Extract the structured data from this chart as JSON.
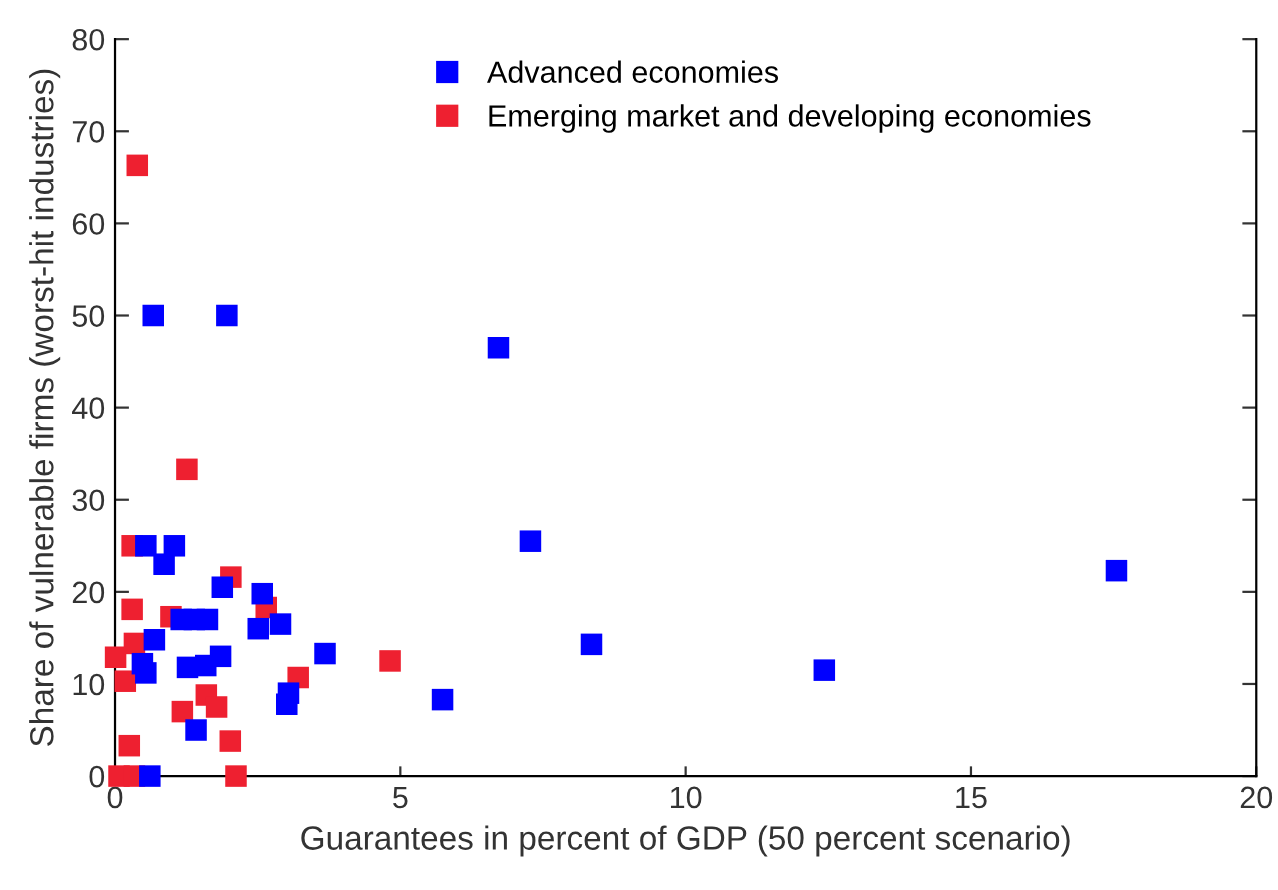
{
  "chart_data": {
    "type": "scatter",
    "xlabel": "Guarantees in percent of GDP (50 percent scenario)",
    "ylabel": "Share of vulnerable firms (worst-hit industries)",
    "xlim": [
      0,
      20
    ],
    "ylim": [
      0,
      80
    ],
    "xticks": [
      0,
      5,
      10,
      15,
      20
    ],
    "yticks": [
      0,
      10,
      20,
      30,
      40,
      50,
      60,
      70,
      80
    ],
    "marker": "square",
    "legend": "top",
    "grid": false,
    "series": [
      {
        "name": "Advanced economies",
        "color": "#0000ff",
        "x": [
          0.67,
          1.96,
          6.72,
          7.28,
          17.55,
          8.35,
          12.43,
          5.74,
          3.68,
          0.54,
          1.04,
          0.86,
          1.88,
          2.58,
          2.51,
          2.9,
          0.69,
          1.16,
          1.39,
          1.62,
          0.54,
          0.48,
          1.27,
          1.59,
          1.85,
          3.04,
          3.01,
          1.42,
          0.61
        ],
        "values": [
          50,
          50,
          46.5,
          25.5,
          22.3,
          14.3,
          11.5,
          8.3,
          13.3,
          25,
          25,
          23,
          20.5,
          19.8,
          16,
          16.5,
          14.8,
          17,
          17,
          17,
          11.2,
          12.2,
          11.8,
          12,
          13,
          9,
          7.8,
          5,
          0
        ]
      },
      {
        "name": "Emerging market and developing economies",
        "color": "#ee2030",
        "x": [
          0.39,
          1.26,
          0.3,
          2.03,
          2.65,
          0.3,
          0.98,
          0.34,
          0.01,
          0.18,
          3.21,
          4.82,
          1.6,
          1.18,
          1.78,
          2.02,
          0.25,
          0.07,
          0.34,
          2.12
        ],
        "values": [
          66.3,
          33.3,
          25,
          21.6,
          18.3,
          18.1,
          17.3,
          14.4,
          12.9,
          10.3,
          10.7,
          12.5,
          8.8,
          7,
          7.5,
          3.8,
          3.3,
          0,
          0,
          0
        ]
      }
    ]
  }
}
